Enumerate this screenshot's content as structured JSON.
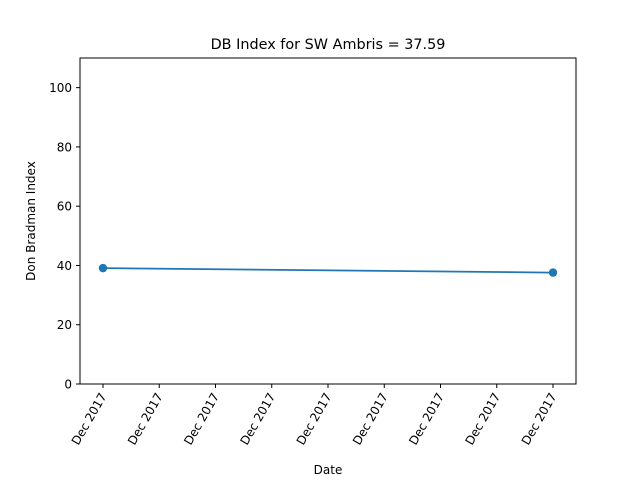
{
  "chart_data": {
    "type": "line",
    "title": "DB Index for SW Ambris = 37.59",
    "xlabel": "Date",
    "ylabel": "Don Bradman Index",
    "ylim": [
      0,
      110
    ],
    "yticks": [
      0,
      20,
      40,
      60,
      80,
      100
    ],
    "xticks": [
      "Dec 2017",
      "Dec 2017",
      "Dec 2017",
      "Dec 2017",
      "Dec 2017",
      "Dec 2017",
      "Dec 2017",
      "Dec 2017",
      "Dec 2017"
    ],
    "grid": false,
    "series": [
      {
        "x": [
          "2017-12-12",
          "2017-12-20"
        ],
        "values": [
          39.1,
          37.59
        ],
        "color": "#1f77b4"
      }
    ]
  }
}
